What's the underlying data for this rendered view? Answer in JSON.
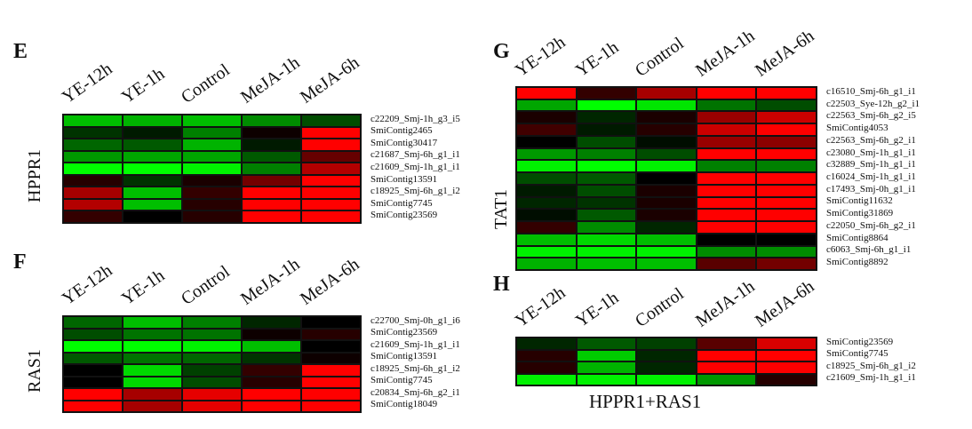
{
  "chart_data": [
    {
      "type": "heatmap",
      "panel": "E",
      "ylabel": "HPPR1",
      "columns": [
        "YE-12h",
        "YE-1h",
        "Control",
        "MeJA-1h",
        "MeJA-6h"
      ],
      "rows": [
        "c22209_Smj-1h_g3_i5",
        "SmiContig2465",
        "SmiContig30417",
        "c21687_Smj-6h_g1_i1",
        "c21609_Smj-1h_g1_i1",
        "SmiContig13591",
        "c18925_Smj-6h_g1_i2",
        "SmiContig7745",
        "SmiContig23569"
      ],
      "values": [
        [
          -0.75,
          -0.7,
          -0.75,
          -0.55,
          -0.3
        ],
        [
          -0.2,
          -0.1,
          -0.5,
          0.05,
          1
        ],
        [
          -0.4,
          -0.35,
          -0.7,
          -0.1,
          1
        ],
        [
          -0.6,
          -0.65,
          -0.65,
          -0.35,
          0.4
        ],
        [
          -1,
          -1,
          -0.95,
          -0.5,
          0.7
        ],
        [
          0.15,
          -0.2,
          0.1,
          0.45,
          1
        ],
        [
          0.65,
          -0.75,
          0.2,
          1,
          1
        ],
        [
          0.7,
          -0.75,
          0.15,
          1,
          1
        ],
        [
          0.2,
          0,
          0.15,
          1,
          1
        ]
      ],
      "colorscale": {
        "low": "#00ff00",
        "mid": "#000000",
        "high": "#ff0000"
      }
    },
    {
      "type": "heatmap",
      "panel": "F",
      "ylabel": "RAS1",
      "columns": [
        "YE-12h",
        "YE-1h",
        "Control",
        "MeJA-1h",
        "MeJA-6h"
      ],
      "rows": [
        "c22700_Smj-0h_g1_i6",
        "SmiContig23569",
        "c21609_Smj-1h_g1_i1",
        "SmiContig13591",
        "c18925_Smj-6h_g1_i2",
        "SmiContig7745",
        "c20834_Smj-6h_g2_i1",
        "SmiContig18049"
      ],
      "values": [
        [
          -0.4,
          -0.75,
          -0.5,
          -0.15,
          0
        ],
        [
          -0.3,
          -0.45,
          -0.45,
          0.05,
          0.15
        ],
        [
          -1,
          -1,
          -0.95,
          -0.75,
          0
        ],
        [
          -0.35,
          -0.45,
          -0.4,
          -0.2,
          0.05
        ],
        [
          0,
          -0.85,
          -0.25,
          0.2,
          1
        ],
        [
          0,
          -0.85,
          -0.3,
          0.15,
          1
        ],
        [
          1,
          0.65,
          0.9,
          1,
          1
        ],
        [
          1,
          0.65,
          0.9,
          1,
          1
        ]
      ],
      "colorscale": {
        "low": "#00ff00",
        "mid": "#000000",
        "high": "#ff0000"
      }
    },
    {
      "type": "heatmap",
      "panel": "G",
      "ylabel": "TAT1",
      "columns": [
        "YE-12h",
        "YE-1h",
        "Control",
        "MeJA-1h",
        "MeJA-6h"
      ],
      "rows": [
        "c16510_Smj-6h_g1_i1",
        "c22503_Sye-12h_g2_i1",
        "c22563_Smj-6h_g2_i5",
        "SmiContig4053",
        "c22563_Smj-6h_g2_i1",
        "c23080_Smj-1h_g1_i1",
        "c32889_Smj-1h_g1_i1",
        "c16024_Smj-1h_g1_i1",
        "c17493_Smj-0h_g1_i1",
        "SmiContig11632",
        "SmiContig31869",
        "c22050_Smj-6h_g2_i1",
        "SmiContig8864",
        "c6063_Smj-6h_g1_i1",
        "SmiContig8892"
      ],
      "values": [
        [
          1,
          0.2,
          0.65,
          1,
          1
        ],
        [
          -0.65,
          -1,
          -0.9,
          -0.45,
          -0.3
        ],
        [
          0.1,
          -0.15,
          0.1,
          0.6,
          0.8
        ],
        [
          0.25,
          -0.1,
          0.15,
          0.8,
          1
        ],
        [
          0,
          -0.3,
          -0.05,
          0.6,
          0.55
        ],
        [
          -0.6,
          -0.5,
          -0.3,
          1,
          1
        ],
        [
          -0.95,
          -1,
          -0.95,
          -0.5,
          -0.5
        ],
        [
          -0.3,
          -0.35,
          0,
          1,
          1
        ],
        [
          -0.1,
          -0.3,
          0.1,
          1,
          1
        ],
        [
          -0.15,
          -0.2,
          0.1,
          1,
          1
        ],
        [
          -0.05,
          -0.35,
          0.1,
          1,
          1
        ],
        [
          0.2,
          -0.55,
          -0.15,
          1,
          1
        ],
        [
          -0.75,
          -0.85,
          -0.75,
          0,
          0
        ],
        [
          -0.95,
          -0.95,
          -0.95,
          -0.55,
          -0.55
        ],
        [
          -0.7,
          -0.75,
          -0.75,
          0.35,
          0.45
        ]
      ],
      "colorscale": {
        "low": "#00ff00",
        "mid": "#000000",
        "high": "#ff0000"
      }
    },
    {
      "type": "heatmap",
      "panel": "H",
      "caption": "HPPR1+RAS1",
      "columns": [
        "YE-12h",
        "YE-1h",
        "Control",
        "MeJA-1h",
        "MeJA-6h"
      ],
      "rows": [
        "SmiContig23569",
        "SmiContig7745",
        "c18925_Smj-6h_g1_i2",
        "c21609_Smj-1h_g1_i1"
      ],
      "values": [
        [
          -0.15,
          -0.35,
          -0.25,
          0.35,
          0.85
        ],
        [
          0.15,
          -0.8,
          -0.15,
          1,
          1
        ],
        [
          0.15,
          -0.7,
          -0.15,
          1,
          1
        ],
        [
          -0.95,
          -0.95,
          -0.95,
          -0.6,
          0.15
        ]
      ],
      "colorscale": {
        "low": "#00ff00",
        "mid": "#000000",
        "high": "#ff0000"
      }
    }
  ]
}
